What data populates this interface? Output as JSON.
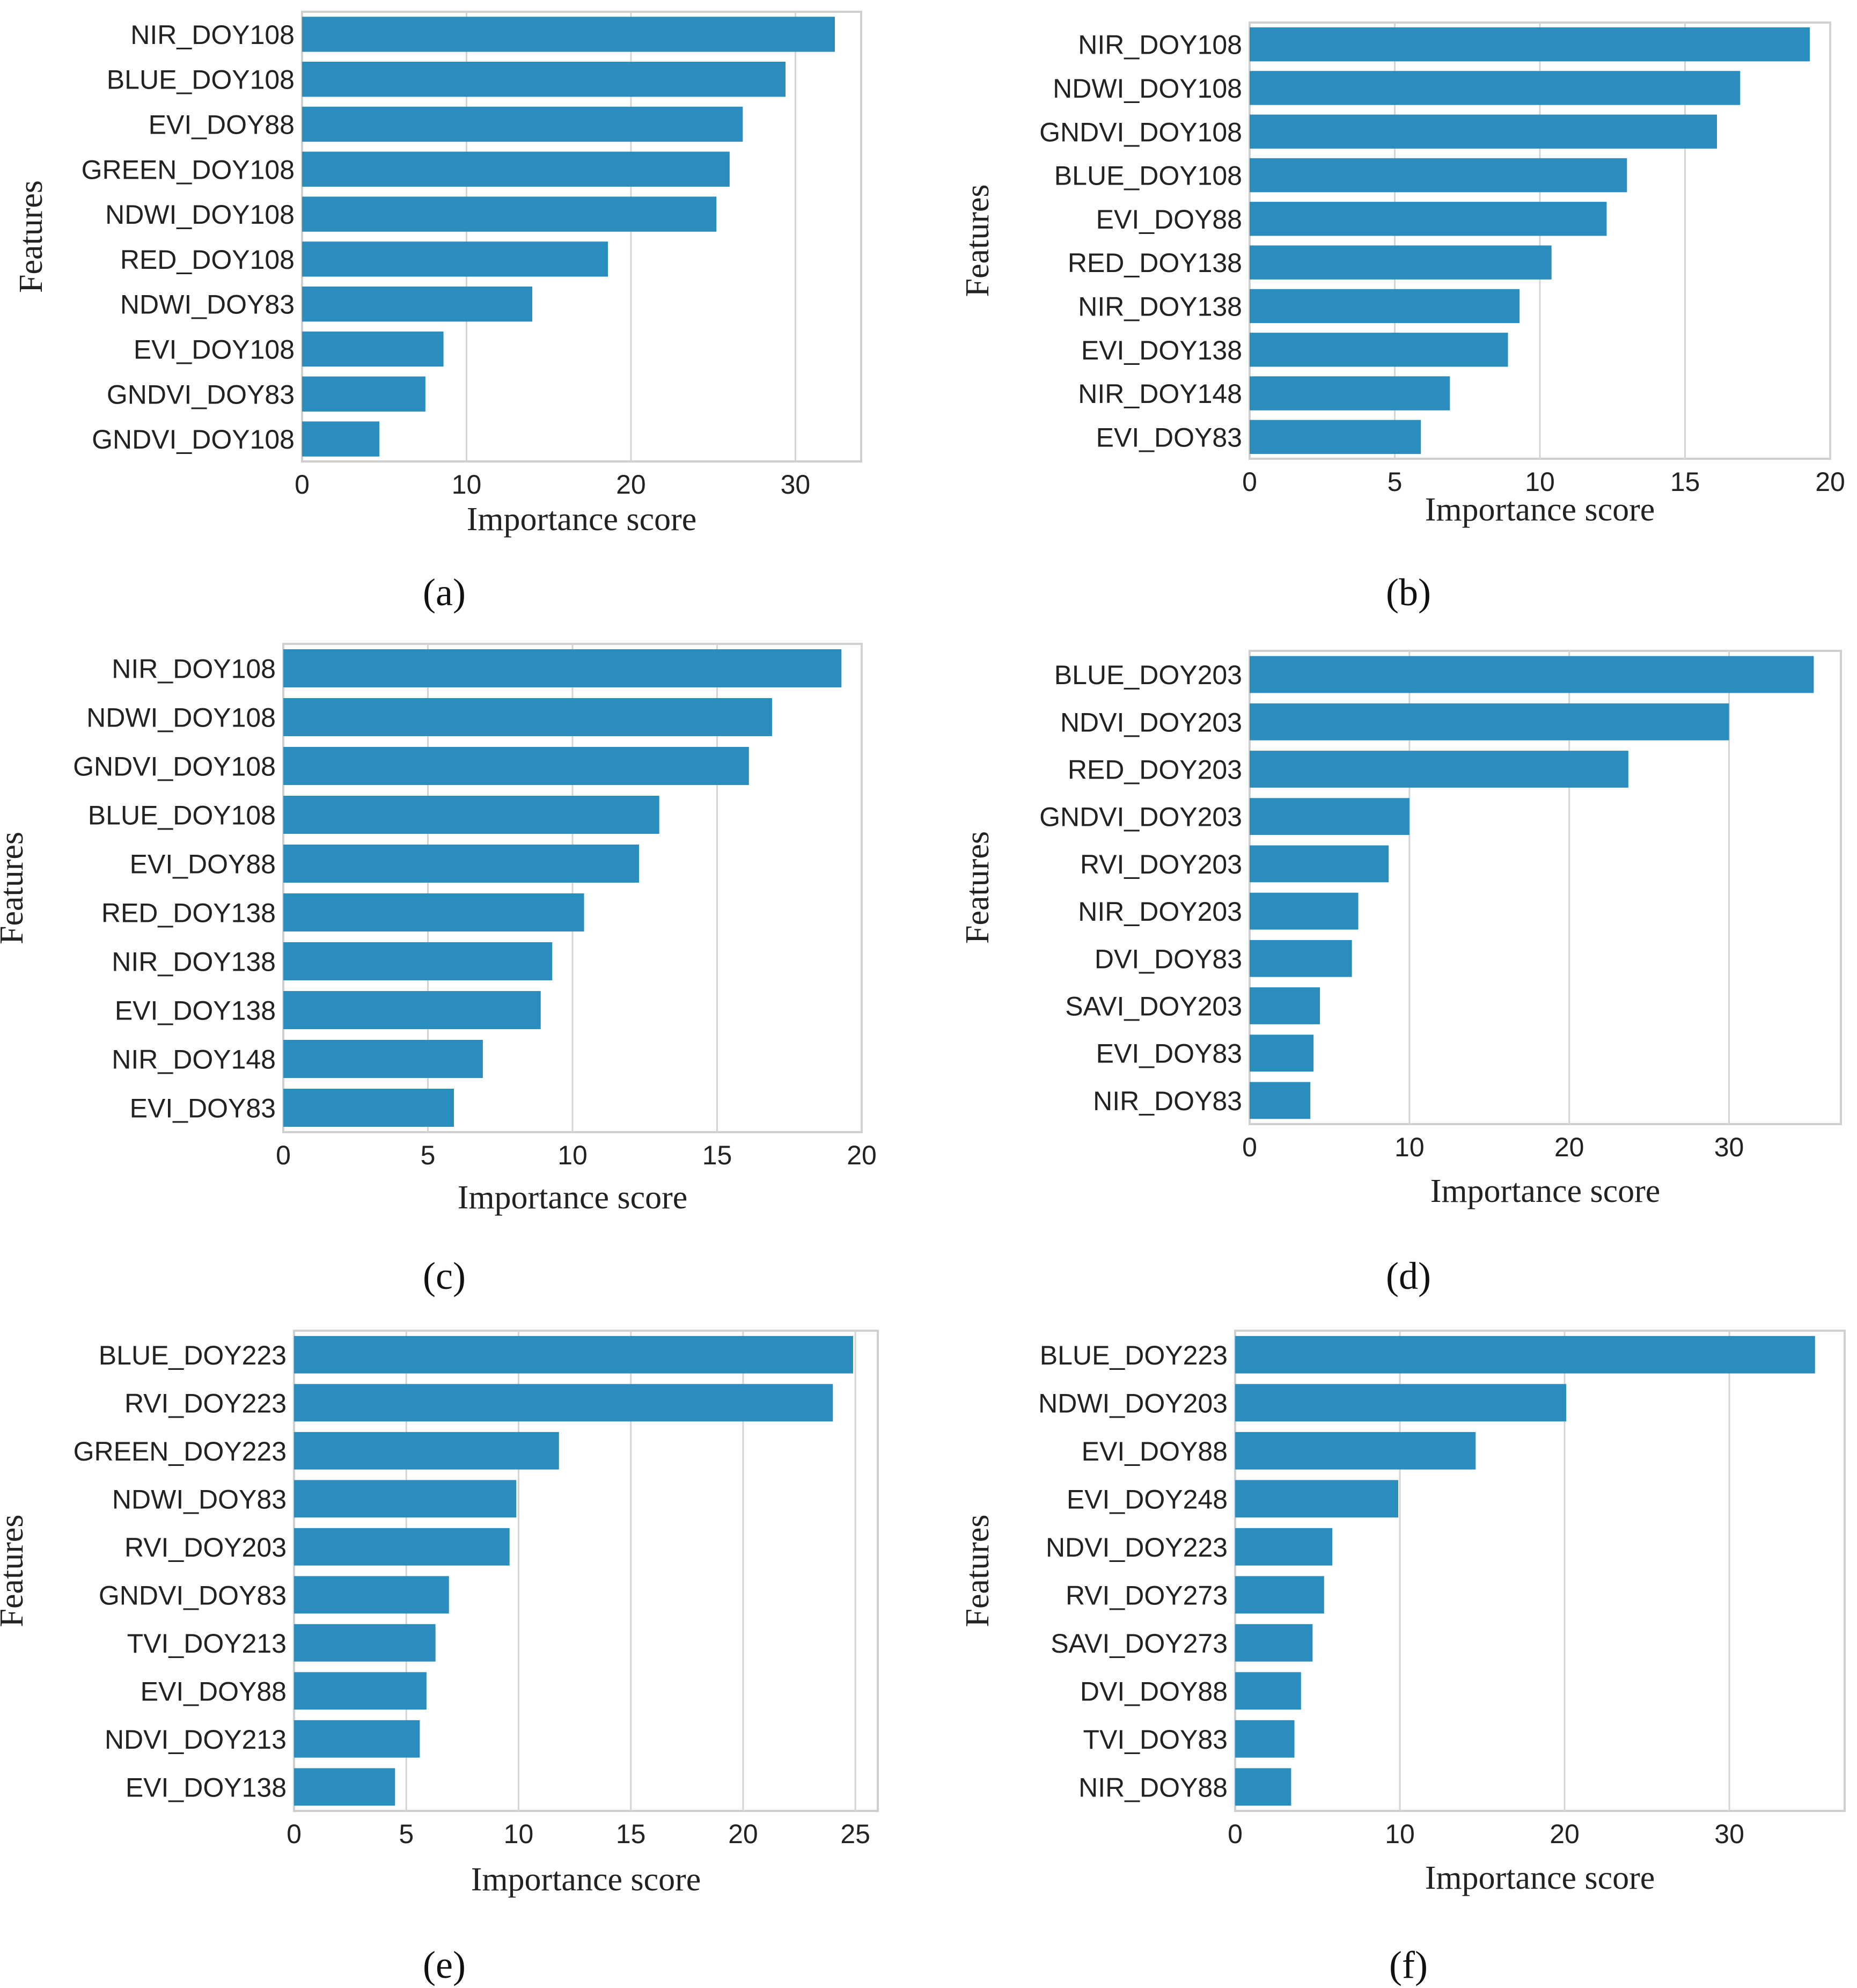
{
  "chart_data": [
    {
      "type": "bar",
      "orientation": "horizontal",
      "caption": "(a)",
      "xlabel": "Importance score",
      "ylabel": "Features",
      "xlim": [
        0,
        34
      ],
      "xticks": [
        0,
        10,
        20,
        30
      ],
      "categories": [
        "NIR_DOY108",
        "BLUE_DOY108",
        "EVI_DOY88",
        "GREEN_DOY108",
        "NDWI_DOY108",
        "RED_DOY108",
        "NDWI_DOY83",
        "EVI_DOY108",
        "GNDVI_DOY83",
        "GNDVI_DOY108"
      ],
      "values": [
        32.4,
        29.4,
        26.8,
        26.0,
        25.2,
        18.6,
        14.0,
        8.6,
        7.5,
        4.7
      ],
      "color": "#2b8cbe"
    },
    {
      "type": "bar",
      "orientation": "horizontal",
      "caption": "(b)",
      "xlabel": "Importance score",
      "ylabel": "Features",
      "xlim": [
        0,
        20
      ],
      "xticks": [
        0,
        5,
        10,
        15,
        20
      ],
      "categories": [
        "NIR_DOY108",
        "NDWI_DOY108",
        "GNDVI_DOY108",
        "BLUE_DOY108",
        "EVI_DOY88",
        "RED_DOY138",
        "NIR_DOY138",
        "EVI_DOY138",
        "NIR_DOY148",
        "EVI_DOY83"
      ],
      "values": [
        19.3,
        16.9,
        16.1,
        13.0,
        12.3,
        10.4,
        9.3,
        8.9,
        6.9,
        5.9
      ],
      "color": "#2b8cbe"
    },
    {
      "type": "bar",
      "orientation": "horizontal",
      "caption": "(c)",
      "xlabel": "Importance score",
      "ylabel": "Features",
      "xlim": [
        0,
        20
      ],
      "xticks": [
        0,
        5,
        10,
        15,
        20
      ],
      "categories": [
        "NIR_DOY108",
        "NDWI_DOY108",
        "GNDVI_DOY108",
        "BLUE_DOY108",
        "EVI_DOY88",
        "RED_DOY138",
        "NIR_DOY138",
        "EVI_DOY138",
        "NIR_DOY148",
        "EVI_DOY83"
      ],
      "values": [
        19.3,
        16.9,
        16.1,
        13.0,
        12.3,
        10.4,
        9.3,
        8.9,
        6.9,
        5.9
      ],
      "color": "#2b8cbe"
    },
    {
      "type": "bar",
      "orientation": "horizontal",
      "caption": "(d)",
      "xlabel": "Importance score",
      "ylabel": "Features",
      "xlim": [
        0,
        37
      ],
      "xticks": [
        0,
        10,
        20,
        30
      ],
      "categories": [
        "BLUE_DOY203",
        "NDVI_DOY203",
        "RED_DOY203",
        "GNDVI_DOY203",
        "RVI_DOY203",
        "NIR_DOY203",
        "DVI_DOY83",
        "SAVI_DOY203",
        "EVI_DOY83",
        "NIR_DOY83"
      ],
      "values": [
        35.3,
        30.0,
        23.7,
        10.0,
        8.7,
        6.8,
        6.4,
        4.4,
        4.0,
        3.8
      ],
      "color": "#2b8cbe"
    },
    {
      "type": "bar",
      "orientation": "horizontal",
      "caption": "(e)",
      "xlabel": "Importance score",
      "ylabel": "Features",
      "xlim": [
        0,
        26
      ],
      "xticks": [
        0,
        5,
        10,
        15,
        20,
        25
      ],
      "categories": [
        "BLUE_DOY223",
        "RVI_DOY223",
        "GREEN_DOY223",
        "NDWI_DOY83",
        "RVI_DOY203",
        "GNDVI_DOY83",
        "TVI_DOY213",
        "EVI_DOY88",
        "NDVI_DOY213",
        "EVI_DOY138"
      ],
      "values": [
        24.9,
        24.0,
        11.8,
        9.9,
        9.6,
        6.9,
        6.3,
        5.9,
        5.6,
        4.5
      ],
      "color": "#2b8cbe"
    },
    {
      "type": "bar",
      "orientation": "horizontal",
      "caption": "(f)",
      "xlabel": "Importance score",
      "ylabel": "Features",
      "xlim": [
        0,
        37
      ],
      "xticks": [
        0,
        10,
        20,
        30
      ],
      "categories": [
        "BLUE_DOY223",
        "NDWI_DOY203",
        "EVI_DOY88",
        "EVI_DOY248",
        "NDVI_DOY223",
        "RVI_DOY273",
        "SAVI_DOY273",
        "DVI_DOY88",
        "TVI_DOY83",
        "NIR_DOY88"
      ],
      "values": [
        35.2,
        20.1,
        14.6,
        9.9,
        5.9,
        5.4,
        4.7,
        4.0,
        3.6,
        3.4
      ],
      "color": "#2b8cbe"
    }
  ]
}
